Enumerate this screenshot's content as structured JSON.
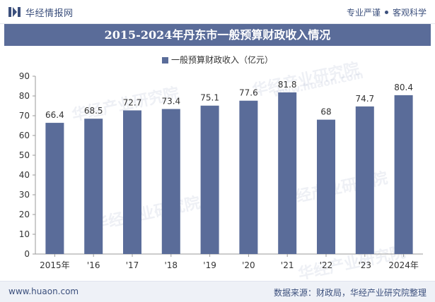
{
  "header": {
    "brand": "华经情报网",
    "tagline_left": "专业严谨",
    "tagline_right": "客观科学"
  },
  "footer": {
    "site": "www.huaon.com",
    "source": "数据来源：财政局，华经产业研究院整理"
  },
  "watermarks": [
    "华经产业研究院",
    "www.huaon.com"
  ],
  "colors": {
    "bar": "#5a6c99",
    "title_bg": "#5a6c99",
    "brand": "#3b4f7c"
  },
  "chart_data": {
    "type": "bar",
    "title": "2015-2024年丹东市一般预算财政收入情况",
    "categories": [
      "2015年",
      "'16",
      "'17",
      "'18",
      "'19",
      "'20",
      "'21",
      "'22",
      "'23",
      "2024年"
    ],
    "series": [
      {
        "name": "一般预算财政收入（亿元）",
        "values": [
          66.4,
          68.5,
          72.7,
          73.4,
          75.1,
          77.6,
          81.8,
          68,
          74.7,
          80.4
        ]
      }
    ],
    "ylim": [
      0,
      90
    ],
    "yticks": [
      0,
      10,
      20,
      30,
      40,
      50,
      60,
      70,
      80,
      90
    ],
    "xlabel": "",
    "ylabel": "",
    "grid": false,
    "legend_position": "top-center"
  }
}
